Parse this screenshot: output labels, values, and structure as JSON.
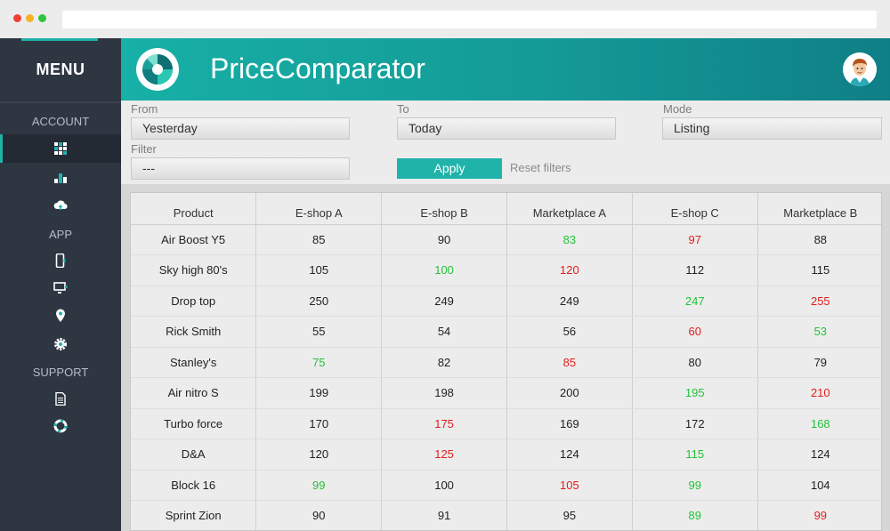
{
  "app": {
    "title": "PriceComparator"
  },
  "sidebar": {
    "menu_title": "MENU",
    "sections": [
      {
        "label": "ACCOUNT",
        "items": [
          {
            "icon": "grid-icon",
            "active": true
          },
          {
            "icon": "bar-chart-icon",
            "active": false
          },
          {
            "icon": "cloud-upload-icon",
            "active": false
          }
        ]
      },
      {
        "label": "APP",
        "items": [
          {
            "icon": "mobile-icon",
            "active": false
          },
          {
            "icon": "monitor-icon",
            "active": false
          },
          {
            "icon": "location-pin-icon",
            "active": false
          },
          {
            "icon": "gear-icon",
            "active": false
          }
        ]
      },
      {
        "label": "SUPPORT",
        "items": [
          {
            "icon": "document-icon",
            "active": false
          },
          {
            "icon": "lifebuoy-icon",
            "active": false
          }
        ]
      }
    ]
  },
  "filters": {
    "from_label": "From",
    "from_value": "Yesterday",
    "to_label": "To",
    "to_value": "Today",
    "mode_label": "Mode",
    "mode_value": "Listing",
    "filter_label": "Filter",
    "filter_value": "---",
    "apply_label": "Apply",
    "reset_label": "Reset filters"
  },
  "colors": {
    "accent": "#1fb3aa",
    "sidebar": "#2e3642",
    "price_low": "#22c23a",
    "price_high": "#e11d1d"
  },
  "table": {
    "columns": [
      "Product",
      "E-shop A",
      "E-shop B",
      "Marketplace A",
      "E-shop C",
      "Marketplace B"
    ],
    "rows": [
      {
        "cells": [
          "Air Boost Y5",
          "85",
          "90",
          "83",
          "97",
          "88"
        ],
        "status": [
          "",
          "",
          "",
          "low",
          "high",
          ""
        ]
      },
      {
        "cells": [
          "Sky high 80's",
          "105",
          "100",
          "120",
          "112",
          "115"
        ],
        "status": [
          "",
          "",
          "low",
          "high",
          "",
          ""
        ]
      },
      {
        "cells": [
          "Drop top",
          "250",
          "249",
          "249",
          "247",
          "255"
        ],
        "status": [
          "",
          "",
          "",
          "",
          "low",
          "high"
        ]
      },
      {
        "cells": [
          "Rick Smith",
          "55",
          "54",
          "56",
          "60",
          "53"
        ],
        "status": [
          "",
          "",
          "",
          "",
          "high",
          "low"
        ]
      },
      {
        "cells": [
          "Stanley's",
          "75",
          "82",
          "85",
          "80",
          "79"
        ],
        "status": [
          "",
          "low",
          "",
          "high",
          "",
          ""
        ]
      },
      {
        "cells": [
          "Air nitro S",
          "199",
          "198",
          "200",
          "195",
          "210"
        ],
        "status": [
          "",
          "",
          "",
          "",
          "low",
          "high"
        ]
      },
      {
        "cells": [
          "Turbo force",
          "170",
          "175",
          "169",
          "172",
          "168"
        ],
        "status": [
          "",
          "",
          "high",
          "",
          "",
          "low"
        ]
      },
      {
        "cells": [
          "D&A",
          "120",
          "125",
          "124",
          "115",
          "124"
        ],
        "status": [
          "",
          "",
          "high",
          "",
          "low",
          ""
        ]
      },
      {
        "cells": [
          "Block 16",
          "99",
          "100",
          "105",
          "99",
          "104"
        ],
        "status": [
          "",
          "low",
          "",
          "high",
          "low",
          ""
        ]
      },
      {
        "cells": [
          "Sprint Zion",
          "90",
          "91",
          "95",
          "89",
          "99"
        ],
        "status": [
          "",
          "",
          "",
          "",
          "low",
          "high"
        ]
      }
    ]
  }
}
